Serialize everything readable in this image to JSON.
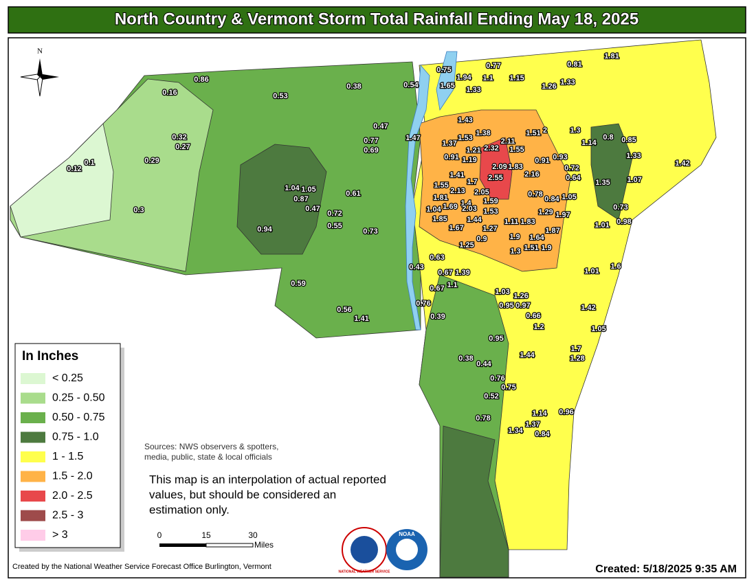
{
  "title": "North Country & Vermont Storm Total Rainfall Ending May 18, 2025",
  "compass": "N",
  "legend": {
    "title": "In Inches",
    "items": [
      {
        "label": "< 0.25",
        "color": "#dcf7d2"
      },
      {
        "label": "0.25 - 0.50",
        "color": "#a9dc8c"
      },
      {
        "label": "0.50 - 0.75",
        "color": "#6ab04c"
      },
      {
        "label": "0.75 - 1.0",
        "color": "#4d7a3f"
      },
      {
        "label": "1 - 1.5",
        "color": "#ffff4d"
      },
      {
        "label": "1.5 - 2.0",
        "color": "#ffb347"
      },
      {
        "label": "2.0 - 2.5",
        "color": "#e8484b"
      },
      {
        "label": "2.5 - 3",
        "color": "#9e4b4b"
      },
      {
        "label": "> 3",
        "color": "#ffcce8"
      }
    ]
  },
  "sources": [
    "Sources: NWS observers & spotters,",
    "media, public, state & local officials"
  ],
  "note": [
    "This map is an interpolation of actual reported",
    "values, but should be considered an",
    "estimation only."
  ],
  "scale_bar": {
    "ticks": [
      "0",
      "15",
      "30"
    ],
    "unit": "Miles"
  },
  "logos": [
    "NATIONAL WEATHER SERVICE",
    "NOAA"
  ],
  "credit": "Created by the National Weather Service Forecast Office Burlington, Vermont",
  "created": "Created:  5/18/2025 9:35 AM",
  "rainfall_labels": [
    0.86,
    0.16,
    0.53,
    0.38,
    0.54,
    0.75,
    0.77,
    1.94,
    1.1,
    1.15,
    1.65,
    1.33,
    1.81,
    0.81,
    1.26,
    1.33,
    0.47,
    1.43,
    1.47,
    0.77,
    0.69,
    1.37,
    1.53,
    1.38,
    1.51,
    2,
    1.3,
    1.14,
    0.8,
    0.85,
    2.11,
    2.32,
    1.21,
    1.55,
    0.32,
    0.27,
    0.29,
    0.12,
    0.1,
    0.91,
    1.19,
    0.91,
    0.93,
    1.33,
    1.42,
    2.09,
    1.83,
    2.16,
    2.55,
    0.72,
    0.64,
    1.35,
    1.07,
    1.41,
    1.55,
    1.04,
    1.05,
    0.87,
    0.61,
    1.81,
    2.13,
    1.7,
    2.05,
    1.4,
    0.78,
    0.84,
    1.05,
    0.73,
    0.3,
    0.47,
    0.72,
    1.04,
    1.69,
    2.03,
    1.59,
    1.53,
    1.29,
    1.97,
    0.55,
    0.94,
    0.73,
    1.85,
    1.44,
    1.67,
    1.27,
    1.11,
    1.83,
    1.87,
    1.01,
    0.98,
    1.25,
    0.9,
    1.9,
    1.64,
    1.9,
    1.3,
    1.51,
    0.63,
    0.43,
    0.67,
    1.39,
    1.01,
    1.6,
    0.59,
    0.67,
    1.1,
    1.03,
    1.26,
    0.95,
    0.97,
    0.76,
    1.42,
    0.56,
    0.66,
    0.39,
    1.41,
    1.2,
    1.05,
    0.95,
    1.7,
    1.28,
    1.44,
    0.38,
    0.44,
    0.76,
    0.75,
    0.52,
    1.14,
    0.96,
    0.78,
    1.37,
    1.34,
    0.84
  ]
}
